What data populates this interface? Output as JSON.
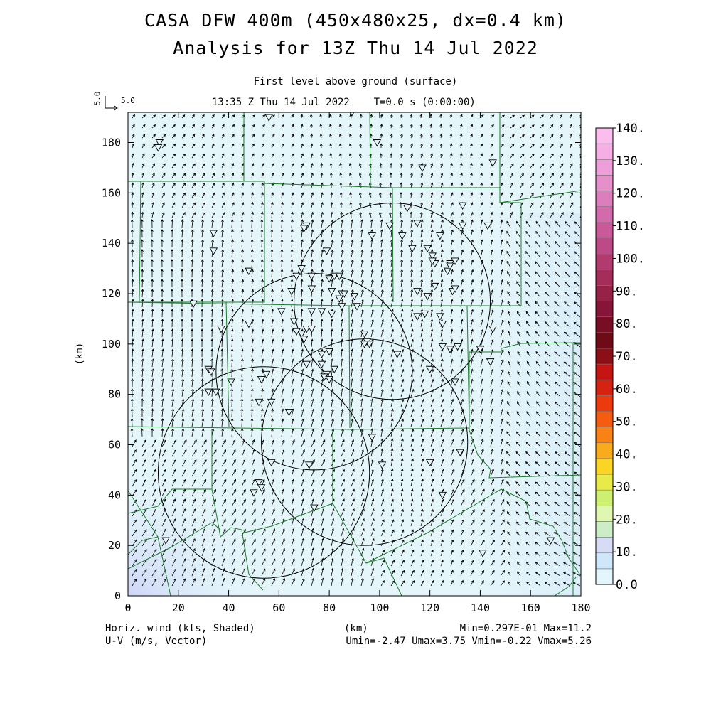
{
  "header": {
    "title_line1": "CASA DFW 400m (450x480x25, dx=0.4 km)",
    "title_line2": "Analysis for 13Z Thu 14 Jul 2022",
    "level": "First level above ground (surface)",
    "time": "13:35 Z Thu 14 Jul 2022    T=0.0 s (0:00:00)",
    "ref_vector_rotated": "5.0",
    "ref_vector_label": "5.0"
  },
  "footer": {
    "left_line1": "Horiz. wind (kts, Shaded)",
    "left_line2": "U-V (m/s, Vector)",
    "center": "(km)",
    "right_line1": "Min=0.297E-01 Max=11.2",
    "right_line2": "Umin=-2.47 Umax=3.75 Vmin=-0.22 Vmax=5.26"
  },
  "colors": {
    "background_field": "#e4f6fa",
    "boundary": "#1e7a2e",
    "vector": "#000000"
  },
  "chart_data": {
    "type": "heatmap",
    "title": "CASA DFW 400m (450x480x25, dx=0.4 km)",
    "subtitle": "Analysis for 13Z Thu 14 Jul 2022",
    "xlabel": "(km)",
    "ylabel": "(km)",
    "xlim": [
      0,
      180
    ],
    "ylim": [
      0,
      192
    ],
    "x_ticks": [
      0,
      20,
      40,
      60,
      80,
      100,
      120,
      140,
      160,
      180
    ],
    "y_ticks": [
      0,
      20,
      40,
      60,
      80,
      100,
      120,
      140,
      160,
      180
    ],
    "colorbar": {
      "ticks": [
        "0.0",
        "10.",
        "20.",
        "30.",
        "40.",
        "50.",
        "60.",
        "70.",
        "80.",
        "90.",
        "100.",
        "110.",
        "120.",
        "130.",
        "140."
      ],
      "colors": [
        "#e2f6fb",
        "#cfe7fa",
        "#d7dcf6",
        "#cbeec7",
        "#dff7b0",
        "#cef070",
        "#e8ea4a",
        "#fbd523",
        "#f9ac1b",
        "#f98214",
        "#f45d10",
        "#ec3a0f",
        "#d62211",
        "#c51512",
        "#8c0e16",
        "#6e0b16",
        "#780e24",
        "#871538",
        "#962248",
        "#a42d5a",
        "#b13a6f",
        "#bd4a86",
        "#c85a99",
        "#d26bab",
        "#dc7dbc",
        "#e58fcb",
        "#ee9fd9",
        "#f5afe4",
        "#fbbcee"
      ]
    },
    "range_rings": [
      {
        "cx": 105,
        "cy": 117,
        "r": 39
      },
      {
        "cx": 74,
        "cy": 89,
        "r": 39
      },
      {
        "cx": 94,
        "cy": 61,
        "r": 41
      },
      {
        "cx": 54,
        "cy": 49,
        "r": 42
      }
    ],
    "stations": [
      [
        12.5,
        180
      ],
      [
        12,
        178
      ],
      [
        56,
        190
      ],
      [
        89,
        192
      ],
      [
        99,
        180
      ],
      [
        117,
        170
      ],
      [
        145,
        172
      ],
      [
        133,
        155
      ],
      [
        111,
        154
      ],
      [
        133,
        147
      ],
      [
        143,
        147
      ],
      [
        104,
        147
      ],
      [
        71,
        147
      ],
      [
        70,
        146
      ],
      [
        34,
        144
      ],
      [
        97,
        143
      ],
      [
        109,
        143
      ],
      [
        115,
        148
      ],
      [
        124,
        143
      ],
      [
        113,
        138
      ],
      [
        119,
        138
      ],
      [
        121,
        135
      ],
      [
        122,
        132
      ],
      [
        121,
        133
      ],
      [
        128,
        132
      ],
      [
        127,
        129
      ],
      [
        128,
        131
      ],
      [
        130,
        133
      ],
      [
        34,
        137
      ],
      [
        79,
        137
      ],
      [
        48,
        129
      ],
      [
        69,
        130
      ],
      [
        67,
        127
      ],
      [
        73,
        127
      ],
      [
        82,
        127
      ],
      [
        84,
        127
      ],
      [
        80,
        126
      ],
      [
        65,
        121
      ],
      [
        73,
        122
      ],
      [
        81,
        121
      ],
      [
        85,
        120
      ],
      [
        86,
        120
      ],
      [
        90,
        119
      ],
      [
        84,
        118
      ],
      [
        115,
        121
      ],
      [
        119,
        119
      ],
      [
        122,
        123
      ],
      [
        129,
        121
      ],
      [
        130,
        122
      ],
      [
        26,
        116
      ],
      [
        61,
        113
      ],
      [
        73,
        113
      ],
      [
        77,
        113
      ],
      [
        81,
        112
      ],
      [
        85,
        115
      ],
      [
        91,
        115
      ],
      [
        115,
        111
      ],
      [
        118,
        112
      ],
      [
        124,
        111
      ],
      [
        125,
        108
      ],
      [
        66,
        109
      ],
      [
        67,
        105
      ],
      [
        69,
        104
      ],
      [
        71,
        106
      ],
      [
        73,
        106
      ],
      [
        70,
        102
      ],
      [
        48,
        108
      ],
      [
        37,
        106
      ],
      [
        94,
        104
      ],
      [
        95,
        101
      ],
      [
        96,
        100
      ],
      [
        94,
        100
      ],
      [
        80,
        97
      ],
      [
        77,
        96
      ],
      [
        107,
        96
      ],
      [
        125,
        99
      ],
      [
        128,
        98
      ],
      [
        131,
        99
      ],
      [
        140,
        98
      ],
      [
        145,
        106
      ],
      [
        144,
        93
      ],
      [
        71,
        92
      ],
      [
        77,
        92
      ],
      [
        82,
        90
      ],
      [
        79,
        88
      ],
      [
        78,
        87
      ],
      [
        80,
        86
      ],
      [
        32,
        90
      ],
      [
        33,
        89
      ],
      [
        55,
        88
      ],
      [
        53,
        86
      ],
      [
        32,
        81
      ],
      [
        35,
        81
      ],
      [
        41,
        85
      ],
      [
        52,
        77
      ],
      [
        120,
        90
      ],
      [
        130,
        85
      ],
      [
        57,
        77
      ],
      [
        64,
        73
      ],
      [
        97,
        63
      ],
      [
        101,
        52
      ],
      [
        120,
        53
      ],
      [
        132,
        57
      ],
      [
        57,
        53
      ],
      [
        72,
        52
      ],
      [
        52,
        45
      ],
      [
        53,
        43
      ],
      [
        50,
        41
      ],
      [
        74,
        35
      ],
      [
        15,
        22
      ],
      [
        125,
        40
      ],
      [
        168,
        22
      ],
      [
        141,
        17
      ]
    ]
  }
}
